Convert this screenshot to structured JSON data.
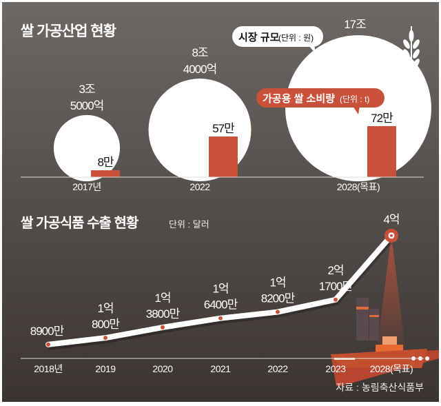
{
  "colors": {
    "accent": "#c9513a",
    "bg_top": "#6b6662",
    "bg_bottom": "#3f3733",
    "white": "#ffffff"
  },
  "chart_data": [
    {
      "type": "bubble+bar",
      "title": "쌀 가공산업 현황",
      "categories": [
        "2017년",
        "2022",
        "2028(목표)"
      ],
      "series": [
        {
          "name": "시장 규모",
          "unit_label": "(단위 : 원)",
          "values_jo": [
            3.5,
            8.4,
            17
          ],
          "labels": [
            [
              "3조",
              "5000억"
            ],
            [
              "8조",
              "4000억"
            ],
            [
              "17조"
            ]
          ]
        },
        {
          "name": "가공용 쌀 소비량",
          "unit_label": "(단위 : t)",
          "values_man": [
            8,
            57,
            72
          ],
          "labels": [
            "8만",
            "57만",
            "72만"
          ]
        }
      ]
    },
    {
      "type": "line",
      "title": "쌀 가공식품 수출 현황",
      "unit": "단위 : 달러",
      "categories": [
        "2018년",
        "2019",
        "2020",
        "2021",
        "2022",
        "2023",
        "2028(목표)"
      ],
      "values_eok": [
        0.89,
        1.08,
        1.38,
        1.64,
        1.82,
        2.17,
        4
      ],
      "labels": [
        [
          "8900만"
        ],
        [
          "1억",
          "800만"
        ],
        [
          "1억",
          "3800만"
        ],
        [
          "1억",
          "6400만"
        ],
        [
          "1억",
          "8200만"
        ],
        [
          "2억",
          "1700만"
        ],
        [
          "4억"
        ]
      ],
      "source": "자료 : 농림축산식품부"
    }
  ]
}
